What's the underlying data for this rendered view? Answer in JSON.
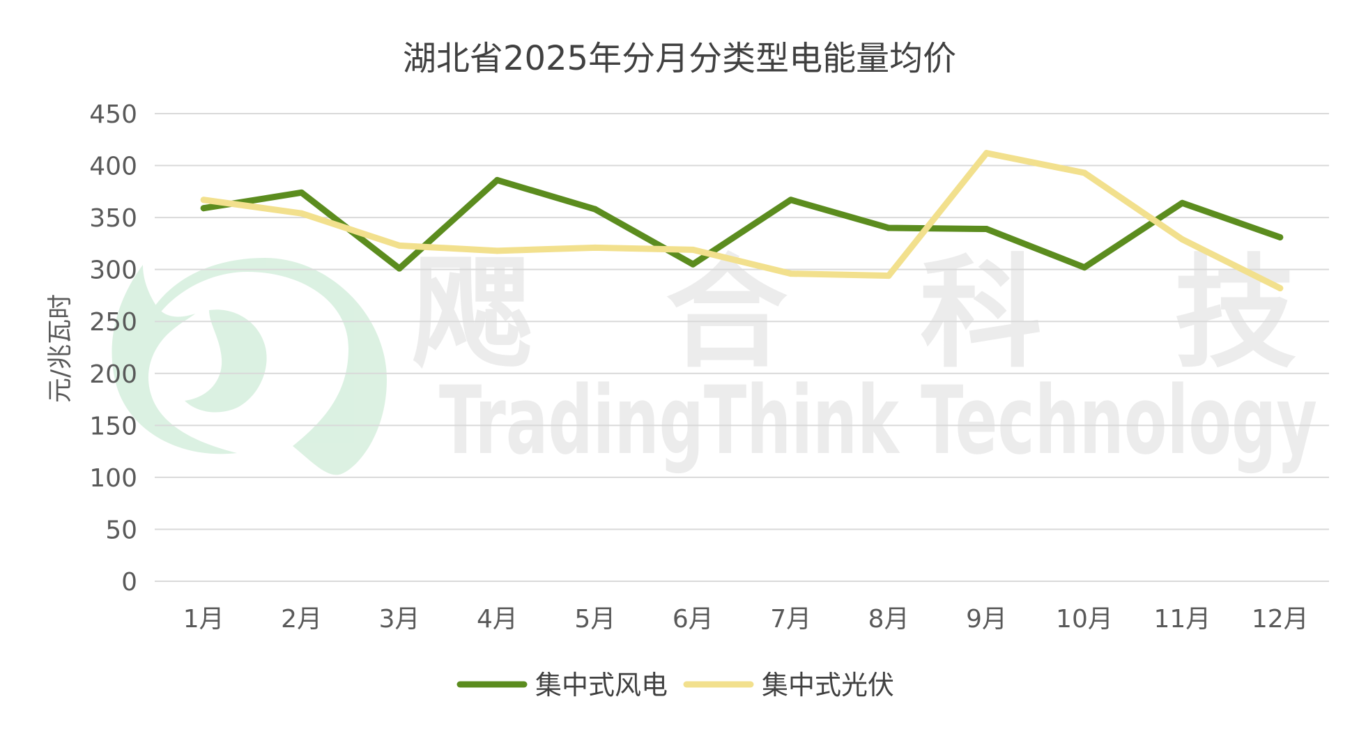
{
  "chart_data": {
    "type": "line",
    "title": "湖北省2025年分月分类型电能量均价",
    "ylabel": "元/兆瓦时",
    "xlabel": "",
    "categories": [
      "1月",
      "2月",
      "3月",
      "4月",
      "5月",
      "6月",
      "7月",
      "8月",
      "9月",
      "10月",
      "11月",
      "12月"
    ],
    "ylim": [
      0,
      450
    ],
    "yticks": [
      0,
      50,
      100,
      150,
      200,
      250,
      300,
      350,
      400,
      450
    ],
    "grid": true,
    "legend_position": "bottom",
    "series": [
      {
        "name": "集中式风电",
        "color": "#5B8C1E",
        "values": [
          359,
          374,
          301,
          386,
          358,
          305,
          367,
          340,
          339,
          302,
          364,
          331
        ]
      },
      {
        "name": "集中式光伏",
        "color": "#F2E08D",
        "values": [
          367,
          354,
          323,
          318,
          321,
          319,
          296,
          294,
          412,
          393,
          329,
          282
        ]
      }
    ]
  },
  "watermark": {
    "cn_chars": [
      "飔",
      "合",
      "科",
      "技"
    ],
    "en": "TradingThink Technology"
  },
  "colors": {
    "gridline": "#D9D9D9",
    "logo_green": "#BFE6CB"
  }
}
